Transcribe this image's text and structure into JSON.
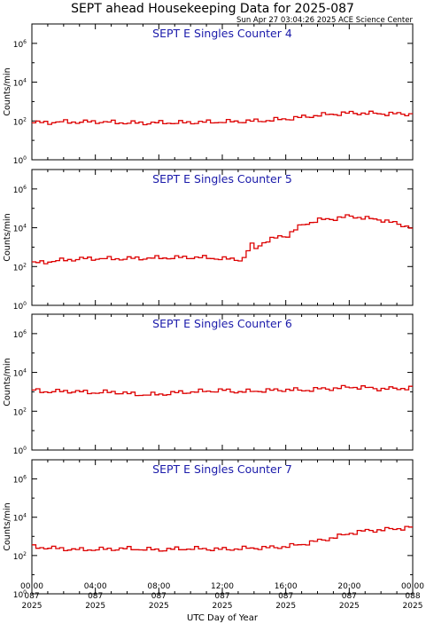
{
  "title": "SEPT ahead Housekeeping Data for 2025-087",
  "timestamp": "Sun Apr 27 03:04:26 2025 ACE Science Center",
  "xlabel": "UTC Day of Year",
  "ylabel": "Counts/min",
  "line_color": "#dd0000",
  "panel_title_color": "#1a1aaa",
  "x_ticks": [
    {
      "hour": 0,
      "l1": "00:00",
      "l2": "087",
      "l3": "2025"
    },
    {
      "hour": 4,
      "l1": "04:00",
      "l2": "087",
      "l3": "2025"
    },
    {
      "hour": 8,
      "l1": "08:00",
      "l2": "087",
      "l3": "2025"
    },
    {
      "hour": 12,
      "l1": "12:00",
      "l2": "087",
      "l3": "2025"
    },
    {
      "hour": 16,
      "l1": "16:00",
      "l2": "087",
      "l3": "2025"
    },
    {
      "hour": 20,
      "l1": "20:00",
      "l2": "087",
      "l3": "2025"
    },
    {
      "hour": 24,
      "l1": "00:00",
      "l2": "088",
      "l3": "2025"
    }
  ],
  "y_ticks": [
    {
      "exp": 0,
      "base": "10",
      "sup": "0"
    },
    {
      "exp": 2,
      "base": "10",
      "sup": "2"
    },
    {
      "exp": 4,
      "base": "10",
      "sup": "4"
    },
    {
      "exp": 6,
      "base": "10",
      "sup": "6"
    }
  ],
  "chart_data": [
    {
      "type": "line",
      "title": "SEPT E Singles Counter 4",
      "xlim": [
        0,
        24
      ],
      "ylim_exp": [
        0,
        7
      ],
      "yscale": "log",
      "points": [
        [
          0,
          80
        ],
        [
          1,
          85
        ],
        [
          2,
          90
        ],
        [
          3,
          88
        ],
        [
          4,
          92
        ],
        [
          5,
          85
        ],
        [
          6,
          80
        ],
        [
          7,
          78
        ],
        [
          8,
          82
        ],
        [
          9,
          80
        ],
        [
          10,
          85
        ],
        [
          11,
          88
        ],
        [
          12,
          90
        ],
        [
          13,
          95
        ],
        [
          14,
          100
        ],
        [
          15,
          110
        ],
        [
          16,
          130
        ],
        [
          17,
          160
        ],
        [
          18,
          200
        ],
        [
          19,
          230
        ],
        [
          20,
          260
        ],
        [
          21,
          250
        ],
        [
          22,
          240
        ],
        [
          23,
          230
        ],
        [
          24,
          230
        ]
      ]
    },
    {
      "type": "line",
      "title": "SEPT E Singles Counter 5",
      "xlim": [
        0,
        24
      ],
      "ylim_exp": [
        0,
        7
      ],
      "yscale": "log",
      "points": [
        [
          0,
          150
        ],
        [
          1,
          180
        ],
        [
          2,
          220
        ],
        [
          3,
          250
        ],
        [
          4,
          260
        ],
        [
          5,
          250
        ],
        [
          6,
          260
        ],
        [
          7,
          270
        ],
        [
          8,
          280
        ],
        [
          9,
          290
        ],
        [
          10,
          300
        ],
        [
          11,
          280
        ],
        [
          12,
          250
        ],
        [
          13,
          230
        ],
        [
          13.4,
          300
        ],
        [
          13.6,
          1500
        ],
        [
          14,
          900
        ],
        [
          14.5,
          1800
        ],
        [
          15,
          2500
        ],
        [
          15.5,
          3500
        ],
        [
          16,
          4000
        ],
        [
          16.5,
          8000
        ],
        [
          17,
          15000
        ],
        [
          18,
          25000
        ],
        [
          19,
          30000
        ],
        [
          20,
          40000
        ],
        [
          21,
          30000
        ],
        [
          22,
          25000
        ],
        [
          23,
          15000
        ],
        [
          24,
          10000
        ]
      ]
    },
    {
      "type": "line",
      "title": "SEPT E Singles Counter 6",
      "xlim": [
        0,
        24
      ],
      "ylim_exp": [
        0,
        7
      ],
      "yscale": "log",
      "points": [
        [
          0,
          1200
        ],
        [
          1,
          1000
        ],
        [
          2,
          1100
        ],
        [
          3,
          1000
        ],
        [
          4,
          900
        ],
        [
          5,
          1000
        ],
        [
          6,
          800
        ],
        [
          7,
          700
        ],
        [
          8,
          750
        ],
        [
          9,
          900
        ],
        [
          10,
          1000
        ],
        [
          11,
          1100
        ],
        [
          12,
          1200
        ],
        [
          13,
          1000
        ],
        [
          14,
          1100
        ],
        [
          15,
          1200
        ],
        [
          16,
          1300
        ],
        [
          17,
          1200
        ],
        [
          18,
          1400
        ],
        [
          19,
          1500
        ],
        [
          20,
          1800
        ],
        [
          21,
          1600
        ],
        [
          22,
          1400
        ],
        [
          23,
          1500
        ],
        [
          24,
          1600
        ]
      ]
    },
    {
      "type": "line",
      "title": "SEPT E Singles Counter 7",
      "xlim": [
        0,
        24
      ],
      "ylim_exp": [
        0,
        7
      ],
      "yscale": "log",
      "points": [
        [
          0,
          280
        ],
        [
          1,
          250
        ],
        [
          2,
          220
        ],
        [
          3,
          200
        ],
        [
          4,
          210
        ],
        [
          5,
          220
        ],
        [
          6,
          230
        ],
        [
          7,
          210
        ],
        [
          8,
          200
        ],
        [
          9,
          220
        ],
        [
          10,
          230
        ],
        [
          11,
          220
        ],
        [
          12,
          210
        ],
        [
          13,
          230
        ],
        [
          14,
          250
        ],
        [
          15,
          260
        ],
        [
          16,
          300
        ],
        [
          17,
          400
        ],
        [
          18,
          600
        ],
        [
          19,
          900
        ],
        [
          20,
          1500
        ],
        [
          21,
          2000
        ],
        [
          22,
          2200
        ],
        [
          23,
          2600
        ],
        [
          24,
          3000
        ]
      ]
    }
  ]
}
